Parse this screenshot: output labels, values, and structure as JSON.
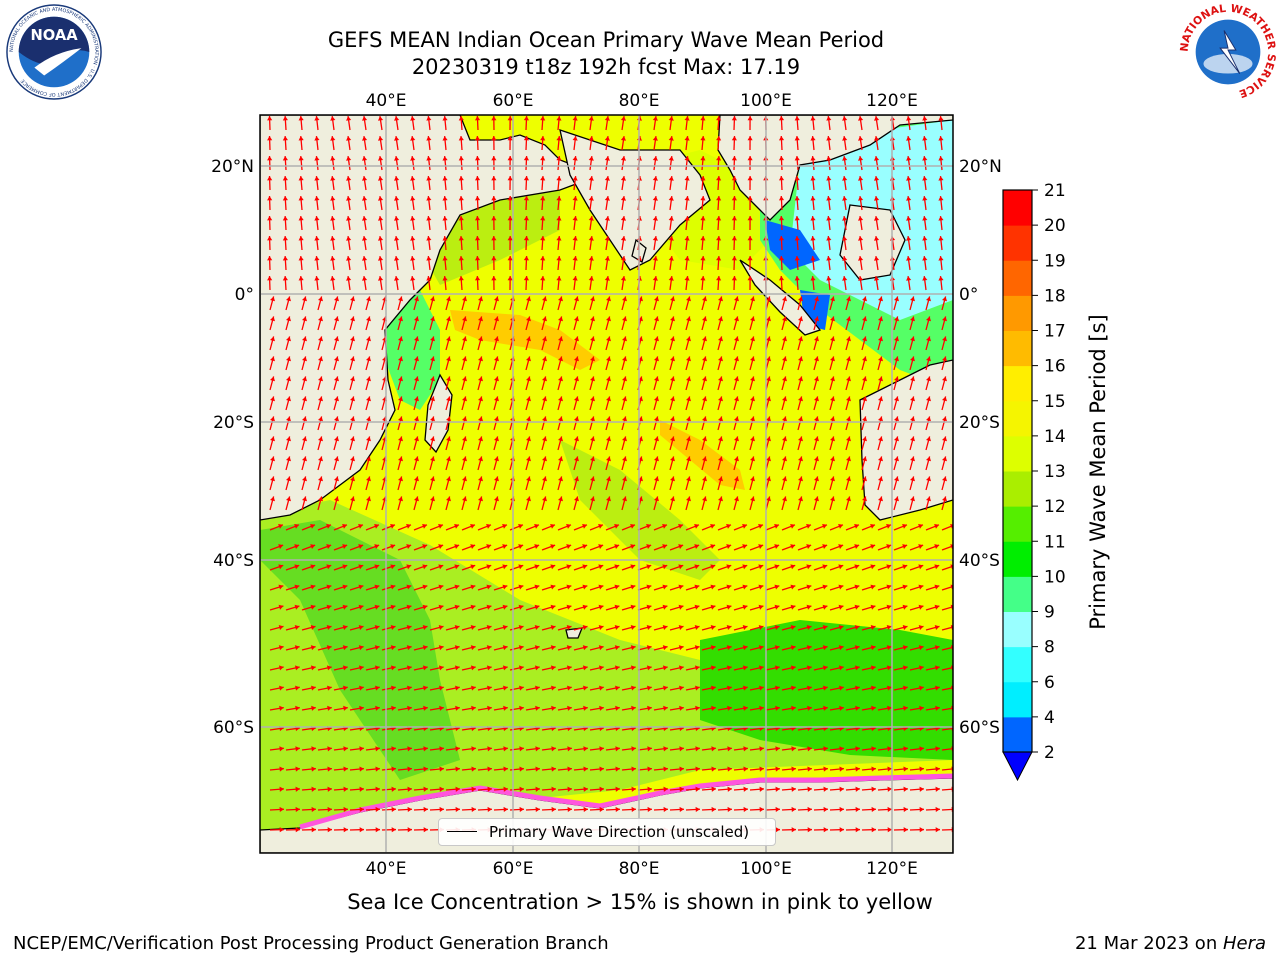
{
  "title": {
    "line1": "GEFS MEAN Indian Ocean Primary Wave Mean Period",
    "line2": "20230319 t18z 192h fcst   Max: 17.19"
  },
  "map": {
    "lon_labels": [
      "40°E",
      "60°E",
      "80°E",
      "100°E",
      "120°E"
    ],
    "lat_labels": [
      "20°N",
      "0°",
      "20°S",
      "40°S",
      "60°S"
    ],
    "lon_values": [
      40,
      60,
      80,
      100,
      120
    ],
    "lat_values": [
      20,
      0,
      -20,
      -40,
      -60
    ],
    "lon_range": [
      20,
      130
    ],
    "lat_range": [
      -78,
      28
    ],
    "gridlines": true,
    "colors": {
      "land": "#efeedd",
      "arrow": "#ff0000",
      "grid": "#b0b0b0",
      "coast": "#000000"
    }
  },
  "legend": {
    "label": "Primary Wave Direction (unscaled)"
  },
  "colorbar": {
    "label": "Primary Wave Mean Period [s]",
    "ticks": [
      "2",
      "4",
      "6",
      "8",
      "9",
      "10",
      "11",
      "12",
      "13",
      "14",
      "15",
      "16",
      "17",
      "18",
      "19",
      "20",
      "21"
    ],
    "colors": [
      "#0066ff",
      "#00eeff",
      "#33ffff",
      "#99ffff",
      "#44ff88",
      "#00ee00",
      "#55ee00",
      "#aaee00",
      "#ddff00",
      "#f5f500",
      "#ffee00",
      "#ffbb00",
      "#ff9900",
      "#ff6600",
      "#ff3300",
      "#ff0000"
    ],
    "extend_min_color": "#0000ff"
  },
  "caption": "Sea Ice Concentration > 15% is shown in pink to yellow",
  "footer": {
    "left": "NCEP/EMC/Verification Post Processing Product Generation Branch",
    "right_date": "21 Mar 2023 on ",
    "right_host": "Hera"
  },
  "logos": {
    "noaa": "NOAA",
    "noaa_ring": "NATIONAL OCEANIC AND ATMOSPHERIC ADMINISTRATION · U.S. DEPARTMENT OF COMMERCE",
    "nws_ring": "NATIONAL WEATHER SERVICE"
  }
}
